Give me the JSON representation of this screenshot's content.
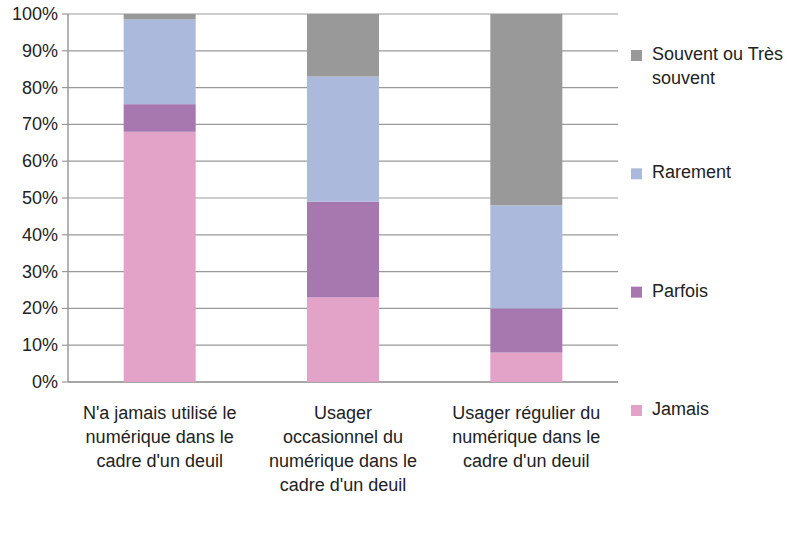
{
  "chart_data": {
    "type": "bar",
    "stacked": true,
    "grid": true,
    "legend": "right",
    "categories": [
      "N'a jamais utilisé le numérique dans le cadre d'un deuil",
      "Usager occasionnel du numérique dans le cadre d'un deuil",
      "Usager régulier du numérique dans le cadre d'un deuil"
    ],
    "series": [
      {
        "name": "Jamais",
        "color": "#e3a2c7",
        "values": [
          68,
          23,
          8
        ]
      },
      {
        "name": "Parfois",
        "color": "#a777b0",
        "values": [
          7.5,
          26,
          12
        ]
      },
      {
        "name": "Rarement",
        "color": "#aab9dc",
        "values": [
          23,
          34,
          28
        ]
      },
      {
        "name": "Souvent ou Très souvent",
        "color": "#999999",
        "values": [
          1.5,
          17,
          52
        ]
      }
    ],
    "ylim": [
      0,
      100
    ],
    "yticks": [
      {
        "value": 0,
        "label": "0%"
      },
      {
        "value": 10,
        "label": "10%"
      },
      {
        "value": 20,
        "label": "20%"
      },
      {
        "value": 30,
        "label": "30%"
      },
      {
        "value": 40,
        "label": "40%"
      },
      {
        "value": 50,
        "label": "50%"
      },
      {
        "value": 60,
        "label": "60%"
      },
      {
        "value": 70,
        "label": "70%"
      },
      {
        "value": 80,
        "label": "80%"
      },
      {
        "value": 90,
        "label": "90%"
      },
      {
        "value": 100,
        "label": "100%"
      }
    ]
  }
}
